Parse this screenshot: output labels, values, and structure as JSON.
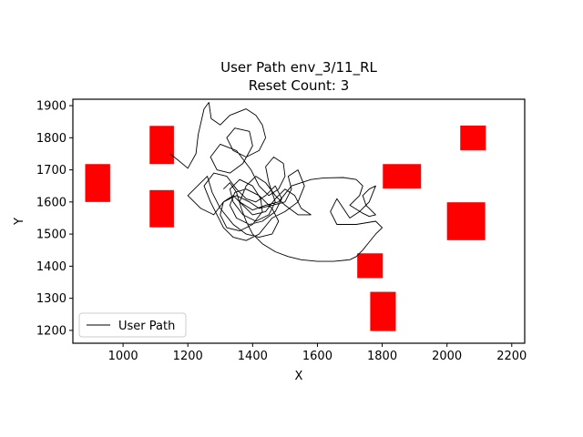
{
  "chart_data": {
    "type": "line",
    "title": "User Path env_3/11_RL",
    "subtitle": "Reset Count: 3",
    "xlabel": "X",
    "ylabel": "Y",
    "xlim": [
      845,
      2240
    ],
    "ylim": [
      1160,
      1920
    ],
    "xticks": [
      1000,
      1200,
      1400,
      1600,
      1800,
      2000,
      2200
    ],
    "yticks": [
      1200,
      1300,
      1400,
      1500,
      1600,
      1700,
      1800,
      1900
    ],
    "grid": false,
    "legend": {
      "placement": "lower-left",
      "entries": [
        "User Path"
      ]
    },
    "colors": {
      "path": "#000000",
      "obstacle": "#ff0000"
    },
    "obstacles": [
      {
        "x0": 883,
        "x1": 960,
        "y0": 1600,
        "y1": 1718
      },
      {
        "x0": 1082,
        "x1": 1157,
        "y0": 1718,
        "y1": 1837
      },
      {
        "x0": 1082,
        "x1": 1157,
        "y0": 1521,
        "y1": 1637
      },
      {
        "x0": 1802,
        "x1": 1920,
        "y0": 1642,
        "y1": 1718
      },
      {
        "x0": 2041,
        "x1": 2120,
        "y0": 1761,
        "y1": 1838
      },
      {
        "x0": 2000,
        "x1": 2118,
        "y0": 1481,
        "y1": 1599
      },
      {
        "x0": 1723,
        "x1": 1802,
        "y0": 1363,
        "y1": 1440
      },
      {
        "x0": 1763,
        "x1": 1842,
        "y0": 1198,
        "y1": 1320
      }
    ],
    "series": [
      {
        "name": "User Path",
        "points": [
          [
            1145,
            1750
          ],
          [
            1170,
            1730
          ],
          [
            1200,
            1705
          ],
          [
            1225,
            1750
          ],
          [
            1232,
            1810
          ],
          [
            1250,
            1890
          ],
          [
            1265,
            1910
          ],
          [
            1272,
            1860
          ],
          [
            1300,
            1840
          ],
          [
            1330,
            1870
          ],
          [
            1380,
            1890
          ],
          [
            1410,
            1870
          ],
          [
            1430,
            1840
          ],
          [
            1440,
            1800
          ],
          [
            1420,
            1760
          ],
          [
            1380,
            1740
          ],
          [
            1340,
            1760
          ],
          [
            1320,
            1800
          ],
          [
            1345,
            1830
          ],
          [
            1390,
            1820
          ],
          [
            1400,
            1775
          ],
          [
            1370,
            1720
          ],
          [
            1330,
            1690
          ],
          [
            1290,
            1700
          ],
          [
            1270,
            1740
          ],
          [
            1300,
            1780
          ],
          [
            1350,
            1760
          ],
          [
            1395,
            1700
          ],
          [
            1420,
            1650
          ],
          [
            1450,
            1620
          ],
          [
            1480,
            1640
          ],
          [
            1500,
            1680
          ],
          [
            1495,
            1720
          ],
          [
            1465,
            1740
          ],
          [
            1440,
            1710
          ],
          [
            1450,
            1660
          ],
          [
            1470,
            1600
          ],
          [
            1450,
            1560
          ],
          [
            1410,
            1540
          ],
          [
            1370,
            1560
          ],
          [
            1340,
            1600
          ],
          [
            1330,
            1640
          ],
          [
            1360,
            1670
          ],
          [
            1400,
            1650
          ],
          [
            1425,
            1610
          ],
          [
            1430,
            1570
          ],
          [
            1400,
            1530
          ],
          [
            1360,
            1510
          ],
          [
            1320,
            1520
          ],
          [
            1300,
            1560
          ],
          [
            1310,
            1600
          ],
          [
            1350,
            1620
          ],
          [
            1390,
            1600
          ],
          [
            1420,
            1580
          ],
          [
            1460,
            1590
          ],
          [
            1500,
            1600
          ],
          [
            1520,
            1640
          ],
          [
            1510,
            1680
          ],
          [
            1540,
            1700
          ],
          [
            1560,
            1650
          ],
          [
            1540,
            1600
          ],
          [
            1500,
            1570
          ],
          [
            1460,
            1550
          ],
          [
            1420,
            1500
          ],
          [
            1380,
            1480
          ],
          [
            1340,
            1490
          ],
          [
            1310,
            1520
          ],
          [
            1290,
            1560
          ],
          [
            1270,
            1600
          ],
          [
            1250,
            1650
          ],
          [
            1280,
            1690
          ],
          [
            1320,
            1680
          ],
          [
            1350,
            1640
          ],
          [
            1380,
            1610
          ],
          [
            1410,
            1600
          ],
          [
            1440,
            1620
          ],
          [
            1470,
            1650
          ],
          [
            1490,
            1610
          ],
          [
            1470,
            1570
          ],
          [
            1430,
            1540
          ],
          [
            1390,
            1530
          ],
          [
            1350,
            1550
          ],
          [
            1330,
            1590
          ],
          [
            1345,
            1630
          ],
          [
            1380,
            1640
          ],
          [
            1420,
            1620
          ],
          [
            1460,
            1580
          ],
          [
            1480,
            1540
          ],
          [
            1460,
            1500
          ],
          [
            1420,
            1490
          ],
          [
            1380,
            1500
          ],
          [
            1340,
            1530
          ],
          [
            1300,
            1580
          ],
          [
            1275,
            1630
          ],
          [
            1260,
            1680
          ],
          [
            1230,
            1650
          ],
          [
            1200,
            1620
          ],
          [
            1240,
            1580
          ],
          [
            1280,
            1560
          ],
          [
            1310,
            1600
          ],
          [
            1340,
            1620
          ],
          [
            1370,
            1590
          ],
          [
            1400,
            1560
          ],
          [
            1440,
            1570
          ],
          [
            1470,
            1610
          ],
          [
            1500,
            1640
          ],
          [
            1530,
            1620
          ],
          [
            1550,
            1580
          ],
          [
            1580,
            1560
          ],
          [
            1540,
            1560
          ],
          [
            1500,
            1590
          ],
          [
            1470,
            1620
          ],
          [
            1440,
            1660
          ],
          [
            1410,
            1680
          ],
          [
            1380,
            1650
          ],
          [
            1360,
            1600
          ],
          [
            1400,
            1575
          ],
          [
            1440,
            1590
          ],
          [
            1480,
            1600
          ],
          [
            1520,
            1650
          ],
          [
            1550,
            1660
          ],
          [
            1580,
            1670
          ],
          [
            1620,
            1675
          ],
          [
            1680,
            1676
          ],
          [
            1720,
            1670
          ],
          [
            1740,
            1650
          ],
          [
            1730,
            1620
          ],
          [
            1700,
            1590
          ],
          [
            1740,
            1565
          ],
          [
            1760,
            1555
          ],
          [
            1780,
            1560
          ],
          [
            1750,
            1590
          ],
          [
            1740,
            1620
          ],
          [
            1760,
            1640
          ],
          [
            1780,
            1650
          ],
          [
            1760,
            1600
          ],
          [
            1730,
            1570
          ],
          [
            1700,
            1550
          ],
          [
            1680,
            1580
          ],
          [
            1660,
            1610
          ],
          [
            1640,
            1570
          ],
          [
            1660,
            1530
          ],
          [
            1720,
            1530
          ],
          [
            1780,
            1540
          ],
          [
            1800,
            1520
          ],
          [
            1780,
            1500
          ],
          [
            1760,
            1475
          ],
          [
            1740,
            1450
          ],
          [
            1720,
            1430
          ],
          [
            1700,
            1420
          ],
          [
            1650,
            1415
          ],
          [
            1600,
            1415
          ],
          [
            1550,
            1420
          ],
          [
            1510,
            1430
          ],
          [
            1470,
            1445
          ],
          [
            1430,
            1470
          ],
          [
            1400,
            1500
          ],
          [
            1380,
            1540
          ],
          [
            1365,
            1580
          ],
          [
            1350,
            1630
          ],
          [
            1330,
            1660
          ],
          [
            1310,
            1640
          ]
        ]
      }
    ]
  }
}
